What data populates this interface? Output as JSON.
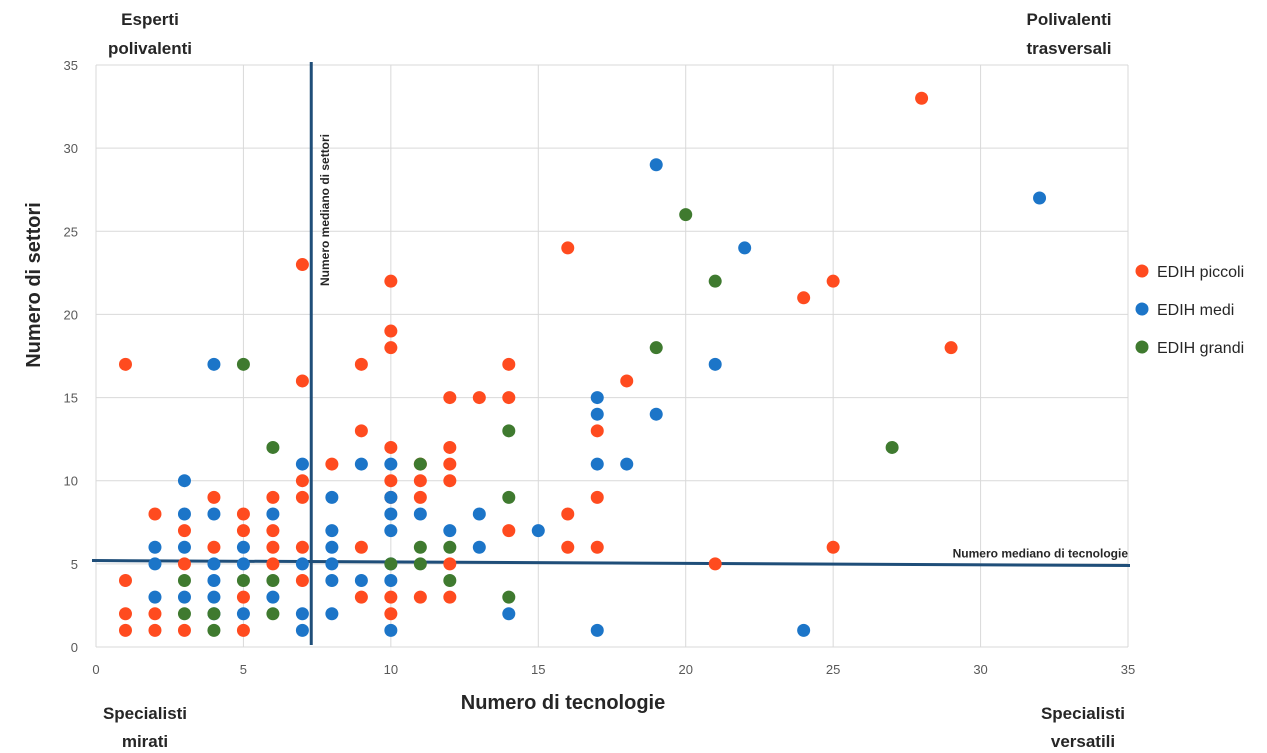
{
  "chart_data": {
    "type": "scatter",
    "xlabel": "Numero di tecnologie",
    "ylabel": "Numero di settori",
    "xlim": [
      0,
      35
    ],
    "ylim": [
      0,
      35
    ],
    "xticks": [
      0,
      5,
      10,
      15,
      20,
      25,
      30,
      35
    ],
    "yticks": [
      0,
      5,
      10,
      15,
      20,
      25,
      30,
      35
    ],
    "grid": true,
    "legend_position": "right",
    "quadrant_labels": {
      "top_left": [
        "Esperti",
        "polivalenti"
      ],
      "top_right": [
        "Polivalenti",
        "trasversali"
      ],
      "bottom_left": [
        "Specialisti",
        "mirati"
      ],
      "bottom_right": [
        "Specialisti",
        "versatili"
      ]
    },
    "median_lines": {
      "vertical": {
        "label": "Numero mediano di settori",
        "x": 7.3,
        "color": "#1f4e79"
      },
      "horizontal": {
        "label": "Numero mediano di tecnologie",
        "y_start": 5.2,
        "y_end": 4.9,
        "color": "#1f4e79"
      }
    },
    "series": [
      {
        "name": "EDIH piccoli",
        "color": "#ff4b1f",
        "points": [
          [
            28,
            33
          ],
          [
            16,
            24
          ],
          [
            7,
            23
          ],
          [
            10,
            22
          ],
          [
            25,
            22
          ],
          [
            24,
            21
          ],
          [
            10,
            19
          ],
          [
            10,
            18
          ],
          [
            29,
            18
          ],
          [
            1,
            17
          ],
          [
            9,
            17
          ],
          [
            14,
            17
          ],
          [
            7,
            16
          ],
          [
            18,
            16
          ],
          [
            12,
            15
          ],
          [
            13,
            15
          ],
          [
            14,
            15
          ],
          [
            9,
            13
          ],
          [
            17,
            13
          ],
          [
            10,
            12
          ],
          [
            12,
            12
          ],
          [
            7,
            10
          ],
          [
            10,
            10
          ],
          [
            11,
            10
          ],
          [
            12,
            10
          ],
          [
            7,
            9
          ],
          [
            10,
            9
          ],
          [
            11,
            9
          ],
          [
            17,
            9
          ],
          [
            2,
            8
          ],
          [
            5,
            8
          ],
          [
            16,
            8
          ],
          [
            3,
            7
          ],
          [
            5,
            7
          ],
          [
            6,
            7
          ],
          [
            14,
            7
          ],
          [
            4,
            6
          ],
          [
            6,
            6
          ],
          [
            7,
            6
          ],
          [
            9,
            6
          ],
          [
            16,
            6
          ],
          [
            17,
            6
          ],
          [
            25,
            6
          ],
          [
            3,
            5
          ],
          [
            6,
            5
          ],
          [
            12,
            5
          ],
          [
            21,
            5
          ],
          [
            1,
            4
          ],
          [
            7,
            4
          ],
          [
            5,
            3
          ],
          [
            9,
            3
          ],
          [
            10,
            3
          ],
          [
            11,
            3
          ],
          [
            12,
            3
          ],
          [
            1,
            2
          ],
          [
            2,
            2
          ],
          [
            10,
            2
          ],
          [
            1,
            1
          ],
          [
            2,
            1
          ],
          [
            3,
            1
          ],
          [
            5,
            1
          ],
          [
            4,
            9
          ],
          [
            6,
            9
          ],
          [
            8,
            11
          ],
          [
            11,
            11
          ],
          [
            12,
            11
          ]
        ]
      },
      {
        "name": "EDIH medi",
        "color": "#1c75c8",
        "points": [
          [
            19,
            29
          ],
          [
            32,
            27
          ],
          [
            22,
            24
          ],
          [
            4,
            17
          ],
          [
            21,
            17
          ],
          [
            17,
            15
          ],
          [
            17,
            14
          ],
          [
            19,
            14
          ],
          [
            7,
            11
          ],
          [
            9,
            11
          ],
          [
            10,
            11
          ],
          [
            17,
            11
          ],
          [
            18,
            11
          ],
          [
            3,
            10
          ],
          [
            8,
            9
          ],
          [
            10,
            9
          ],
          [
            3,
            8
          ],
          [
            4,
            8
          ],
          [
            6,
            8
          ],
          [
            10,
            8
          ],
          [
            11,
            8
          ],
          [
            13,
            8
          ],
          [
            10,
            7
          ],
          [
            15,
            7
          ],
          [
            8,
            7
          ],
          [
            12,
            7
          ],
          [
            2,
            6
          ],
          [
            3,
            6
          ],
          [
            5,
            6
          ],
          [
            8,
            6
          ],
          [
            13,
            6
          ],
          [
            2,
            5
          ],
          [
            4,
            5
          ],
          [
            5,
            5
          ],
          [
            7,
            5
          ],
          [
            8,
            5
          ],
          [
            10,
            5
          ],
          [
            4,
            4
          ],
          [
            8,
            4
          ],
          [
            9,
            4
          ],
          [
            10,
            4
          ],
          [
            2,
            3
          ],
          [
            3,
            3
          ],
          [
            4,
            3
          ],
          [
            6,
            3
          ],
          [
            4,
            2
          ],
          [
            5,
            2
          ],
          [
            7,
            2
          ],
          [
            8,
            2
          ],
          [
            14,
            2
          ],
          [
            7,
            1
          ],
          [
            10,
            1
          ],
          [
            17,
            1
          ],
          [
            24,
            1
          ]
        ]
      },
      {
        "name": "EDIH grandi",
        "color": "#3f7a2f",
        "points": [
          [
            20,
            26
          ],
          [
            21,
            22
          ],
          [
            19,
            18
          ],
          [
            5,
            17
          ],
          [
            14,
            13
          ],
          [
            6,
            12
          ],
          [
            27,
            12
          ],
          [
            11,
            11
          ],
          [
            14,
            9
          ],
          [
            11,
            6
          ],
          [
            12,
            6
          ],
          [
            10,
            5
          ],
          [
            11,
            5
          ],
          [
            3,
            4
          ],
          [
            5,
            4
          ],
          [
            6,
            4
          ],
          [
            12,
            4
          ],
          [
            14,
            3
          ],
          [
            3,
            2
          ],
          [
            4,
            2
          ],
          [
            6,
            2
          ],
          [
            4,
            1
          ]
        ]
      }
    ]
  }
}
